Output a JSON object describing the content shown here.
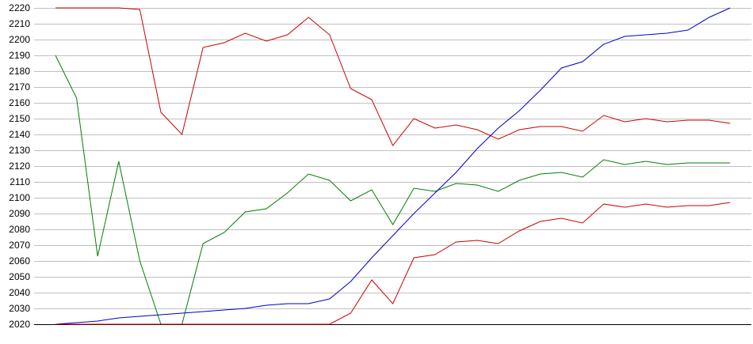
{
  "chart_data": {
    "type": "line",
    "title": "",
    "xlabel": "",
    "ylabel": "",
    "ylim": [
      2020,
      2220
    ],
    "yticks": [
      2020,
      2030,
      2040,
      2050,
      2060,
      2070,
      2080,
      2090,
      2100,
      2110,
      2120,
      2130,
      2140,
      2150,
      2160,
      2170,
      2180,
      2190,
      2200,
      2210,
      2220
    ],
    "ytick_labels": [
      "2020",
      "2030",
      "2040",
      "2050",
      "2060",
      "2070",
      "2080",
      "2090",
      "2100",
      "2110",
      "2120",
      "2130",
      "2140",
      "2150",
      "2160",
      "2170",
      "2180",
      "2190",
      "2200",
      "2210",
      "2220"
    ],
    "grid": "horizontal",
    "legend": "none",
    "x": [
      1,
      2,
      3,
      4,
      5,
      6,
      7,
      8,
      9,
      10,
      11,
      12,
      13,
      14,
      15,
      16,
      17,
      18,
      19,
      20,
      21,
      22,
      23,
      24,
      25,
      26,
      27,
      28,
      29,
      30,
      31,
      32,
      33,
      34
    ],
    "series": [
      {
        "color": "#cc0000",
        "values": [
          2220,
          2220,
          2220,
          2220,
          2219,
          2154,
          2140,
          2195,
          2198,
          2204,
          2199,
          2203,
          2214,
          2203,
          2169,
          2162,
          2133,
          2150,
          2144,
          2146,
          2143,
          2137,
          2143,
          2145,
          2145,
          2142,
          2152,
          2148,
          2150,
          2148,
          2149,
          2149,
          2147,
          null
        ]
      },
      {
        "color": "#008000",
        "values": [
          2190,
          2163,
          2063,
          2123,
          2060,
          2020,
          2020,
          2071,
          2078,
          2091,
          2093,
          2103,
          2115,
          2111,
          2098,
          2105,
          2083,
          2106,
          2104,
          2109,
          2108,
          2104,
          2111,
          2115,
          2116,
          2113,
          2124,
          2121,
          2123,
          2121,
          2122,
          2122,
          2122,
          null
        ]
      },
      {
        "color": "#0000cc",
        "values": [
          2020,
          2021,
          2022,
          2024,
          2025,
          2026,
          2027,
          2028,
          2029,
          2030,
          2032,
          2033,
          2033,
          2036,
          2047,
          2062,
          2076,
          2090,
          2103,
          2116,
          2131,
          2144,
          2155,
          2168,
          2182,
          2186,
          2197,
          2202,
          2203,
          2204,
          2206,
          2214,
          2220,
          null
        ]
      },
      {
        "color": "#cc0000",
        "values": [
          2020,
          2020,
          2020,
          2020,
          2020,
          2020,
          2020,
          2020,
          2020,
          2020,
          2020,
          2020,
          2020,
          2020,
          2027,
          2048,
          2033,
          2062,
          2064,
          2072,
          2073,
          2071,
          2079,
          2085,
          2087,
          2084,
          2096,
          2094,
          2096,
          2094,
          2095,
          2095,
          2097,
          null
        ]
      }
    ]
  }
}
